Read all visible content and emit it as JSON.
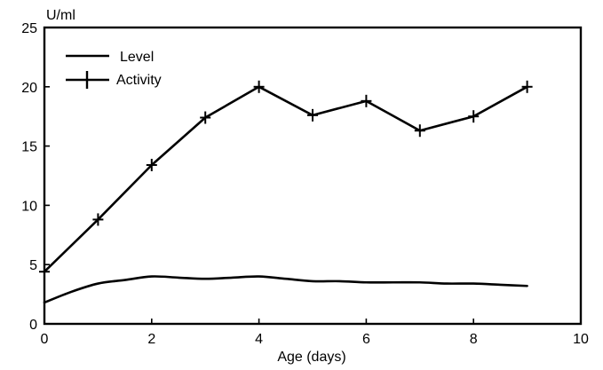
{
  "chart_data": {
    "type": "line",
    "xlabel": "Age  (days)",
    "ylabel": "U/ml",
    "xlim": [
      0,
      10
    ],
    "ylim": [
      0,
      25
    ],
    "xticks": [
      0,
      2,
      4,
      6,
      8,
      10
    ],
    "yticks": [
      0,
      5,
      10,
      15,
      20,
      25
    ],
    "grid": false,
    "legend_position": "top-left",
    "series": [
      {
        "name": "Level",
        "marker": "none",
        "x": [
          0,
          0.5,
          1,
          1.5,
          2,
          2.5,
          3,
          3.5,
          4,
          4.5,
          5,
          5.5,
          6,
          6.5,
          7,
          7.5,
          8,
          8.5,
          9
        ],
        "y": [
          1.8,
          2.7,
          3.4,
          3.7,
          4.0,
          3.9,
          3.8,
          3.9,
          4.0,
          3.8,
          3.6,
          3.6,
          3.5,
          3.5,
          3.5,
          3.4,
          3.4,
          3.3,
          3.2
        ]
      },
      {
        "name": "Activity",
        "marker": "plus",
        "x": [
          0,
          1,
          2,
          3,
          4,
          5,
          6,
          7,
          8,
          9
        ],
        "y": [
          4.4,
          8.8,
          13.4,
          17.4,
          20.0,
          17.6,
          18.8,
          16.3,
          17.5,
          20.0
        ]
      }
    ]
  }
}
